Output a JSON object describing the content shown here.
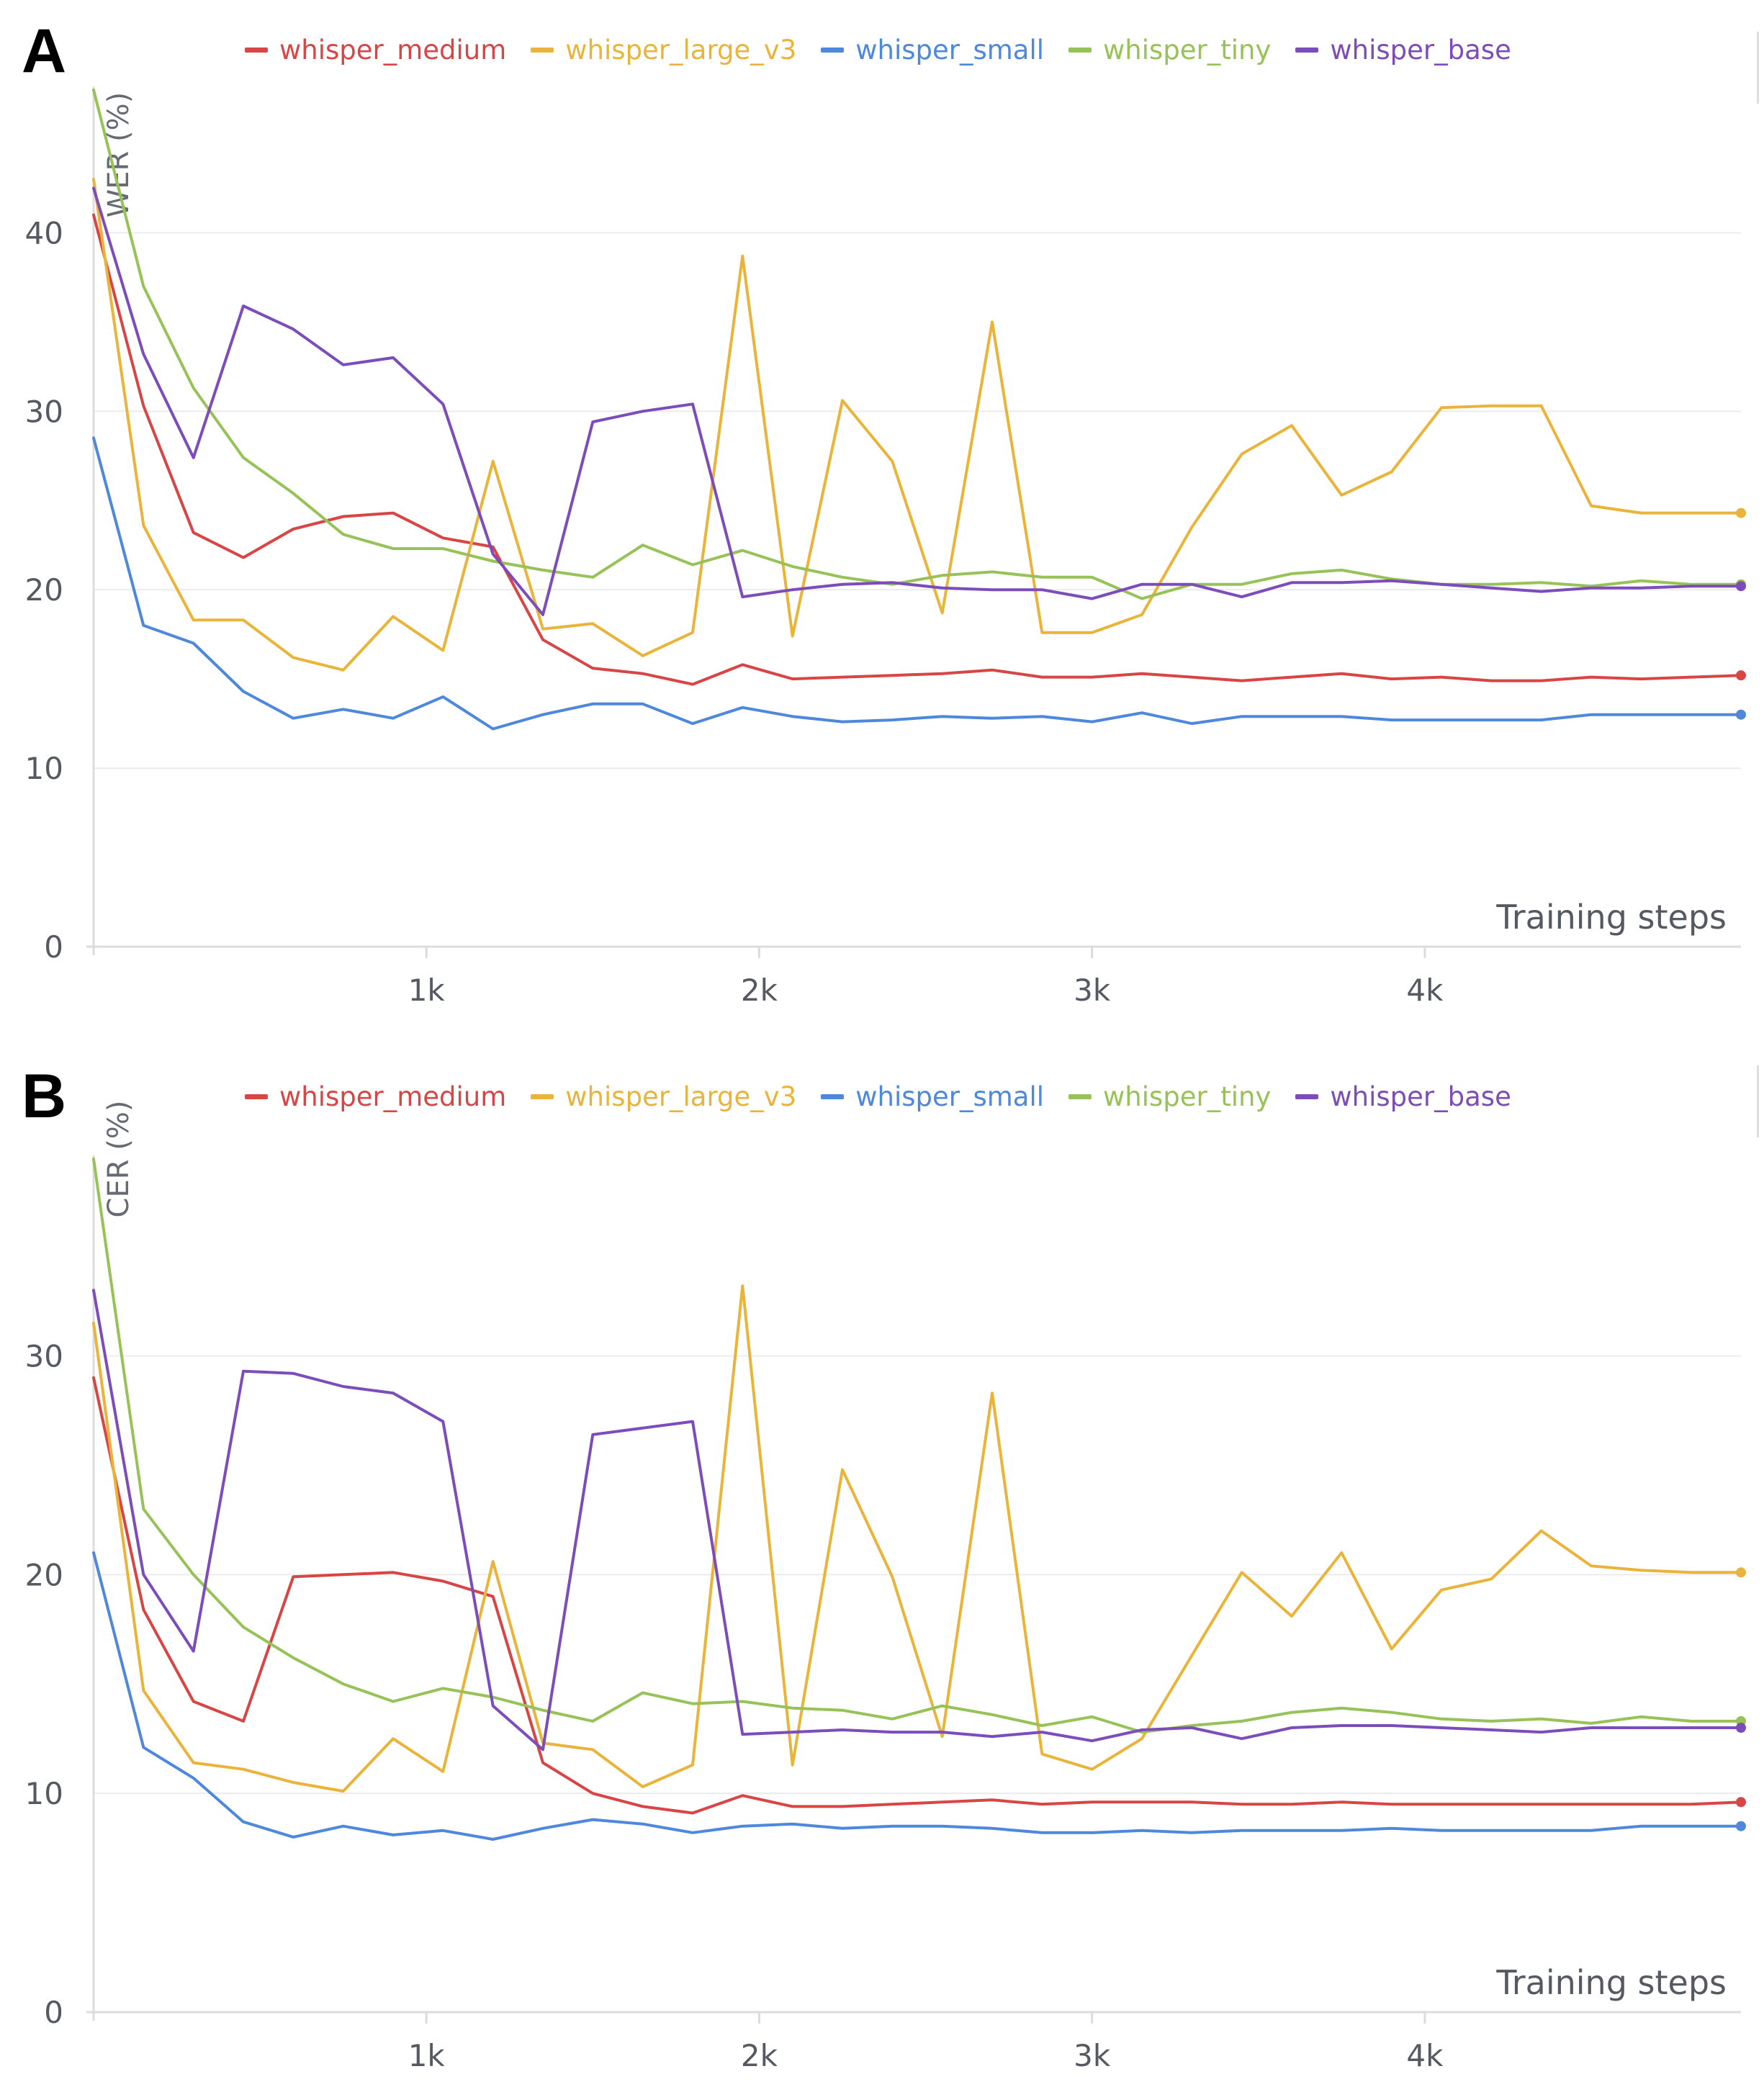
{
  "panels": [
    {
      "letter": "A",
      "legend": [
        {
          "name": "whisper_medium",
          "color": "#d94545"
        },
        {
          "name": "whisper_large_v3",
          "color": "#eab43b"
        },
        {
          "name": "whisper_small",
          "color": "#4d88dc"
        },
        {
          "name": "whisper_tiny",
          "color": "#96c257"
        },
        {
          "name": "whisper_base",
          "color": "#7c4dba"
        }
      ]
    },
    {
      "letter": "B",
      "legend": [
        {
          "name": "whisper_medium",
          "color": "#d94545"
        },
        {
          "name": "whisper_large_v3",
          "color": "#eab43b"
        },
        {
          "name": "whisper_small",
          "color": "#4d88dc"
        },
        {
          "name": "whisper_tiny",
          "color": "#96c257"
        },
        {
          "name": "whisper_base",
          "color": "#7c4dba"
        }
      ]
    }
  ],
  "chart_data": [
    {
      "type": "line",
      "ylabel": "WER (%)",
      "xlabel": "Training steps",
      "xlim": [
        0,
        4950
      ],
      "ylim": [
        0,
        48
      ],
      "x_ticks": [
        1000,
        2000,
        3000,
        4000
      ],
      "x_tick_labels": [
        "1k",
        "2k",
        "3k",
        "4k"
      ],
      "y_ticks": [
        0,
        10,
        20,
        30,
        40
      ],
      "y_tick_labels": [
        "0",
        "10",
        "20",
        "30",
        "40"
      ],
      "grid": true,
      "legend_position": "top",
      "x": [
        0,
        150,
        300,
        450,
        600,
        750,
        900,
        1050,
        1200,
        1350,
        1500,
        1650,
        1800,
        1950,
        2100,
        2250,
        2400,
        2550,
        2700,
        2850,
        3000,
        3150,
        3300,
        3450,
        3600,
        3750,
        3900,
        4050,
        4200,
        4350,
        4500,
        4650,
        4800,
        4950
      ],
      "series": [
        {
          "name": "whisper_medium",
          "color": "#d94545",
          "values": [
            41.0,
            30.3,
            23.2,
            21.8,
            23.4,
            24.1,
            24.3,
            22.9,
            22.4,
            17.2,
            15.6,
            15.3,
            14.7,
            15.8,
            15.0,
            15.1,
            15.2,
            15.3,
            15.5,
            15.1,
            15.1,
            15.3,
            15.1,
            14.9,
            15.1,
            15.3,
            15.0,
            15.1,
            14.9,
            14.9,
            15.1,
            15.0,
            15.1,
            15.2
          ]
        },
        {
          "name": "whisper_large_v3",
          "color": "#eab43b",
          "values": [
            43.0,
            23.6,
            18.3,
            18.3,
            16.2,
            15.5,
            18.5,
            16.6,
            27.2,
            17.8,
            18.1,
            16.3,
            17.6,
            38.7,
            17.4,
            30.6,
            27.2,
            18.7,
            35.0,
            17.6,
            17.6,
            18.6,
            23.5,
            27.6,
            29.2,
            25.3,
            26.6,
            30.2,
            30.3,
            30.3,
            24.7,
            24.3,
            24.3,
            24.3
          ]
        },
        {
          "name": "whisper_small",
          "color": "#4d88dc",
          "values": [
            28.5,
            18.0,
            17.0,
            14.3,
            12.8,
            13.3,
            12.8,
            14.0,
            12.2,
            13.0,
            13.6,
            13.6,
            12.5,
            13.4,
            12.9,
            12.6,
            12.7,
            12.9,
            12.8,
            12.9,
            12.6,
            13.1,
            12.5,
            12.9,
            12.9,
            12.9,
            12.7,
            12.7,
            12.7,
            12.7,
            13.0,
            13.0,
            13.0,
            13.0
          ]
        },
        {
          "name": "whisper_tiny",
          "color": "#96c257",
          "values": [
            48.0,
            37.0,
            31.3,
            27.4,
            25.4,
            23.1,
            22.3,
            22.3,
            21.6,
            21.1,
            20.7,
            22.5,
            21.4,
            22.2,
            21.3,
            20.7,
            20.3,
            20.8,
            21.0,
            20.7,
            20.7,
            19.5,
            20.3,
            20.3,
            20.9,
            21.1,
            20.6,
            20.3,
            20.3,
            20.4,
            20.2,
            20.5,
            20.3,
            20.3
          ]
        },
        {
          "name": "whisper_base",
          "color": "#7c4dba",
          "values": [
            42.5,
            33.2,
            27.4,
            35.9,
            34.6,
            32.6,
            33.0,
            30.4,
            22.0,
            18.6,
            29.4,
            30.0,
            30.4,
            19.6,
            20.0,
            20.3,
            20.4,
            20.1,
            20.0,
            20.0,
            19.5,
            20.3,
            20.3,
            19.6,
            20.4,
            20.4,
            20.5,
            20.3,
            20.1,
            19.9,
            20.1,
            20.1,
            20.2,
            20.2
          ]
        }
      ]
    },
    {
      "type": "line",
      "ylabel": "CER (%)",
      "xlabel": "Training steps",
      "xlim": [
        0,
        4950
      ],
      "ylim": [
        0,
        39
      ],
      "x_ticks": [
        1000,
        2000,
        3000,
        4000
      ],
      "x_tick_labels": [
        "1k",
        "2k",
        "3k",
        "4k"
      ],
      "y_ticks": [
        0,
        10,
        20,
        30
      ],
      "y_tick_labels": [
        "0",
        "10",
        "20",
        "30"
      ],
      "grid": true,
      "legend_position": "top",
      "x": [
        0,
        150,
        300,
        450,
        600,
        750,
        900,
        1050,
        1200,
        1350,
        1500,
        1650,
        1800,
        1950,
        2100,
        2250,
        2400,
        2550,
        2700,
        2850,
        3000,
        3150,
        3300,
        3450,
        3600,
        3750,
        3900,
        4050,
        4200,
        4350,
        4500,
        4650,
        4800,
        4950
      ],
      "series": [
        {
          "name": "whisper_medium",
          "color": "#d94545",
          "values": [
            29.0,
            18.4,
            14.2,
            13.3,
            19.9,
            20.0,
            20.1,
            19.7,
            19.0,
            11.4,
            10.0,
            9.4,
            9.1,
            9.9,
            9.4,
            9.4,
            9.5,
            9.6,
            9.7,
            9.5,
            9.6,
            9.6,
            9.6,
            9.5,
            9.5,
            9.6,
            9.5,
            9.5,
            9.5,
            9.5,
            9.5,
            9.5,
            9.5,
            9.6
          ]
        },
        {
          "name": "whisper_large_v3",
          "color": "#eab43b",
          "values": [
            31.5,
            14.7,
            11.4,
            11.1,
            10.5,
            10.1,
            12.5,
            11.0,
            20.6,
            12.3,
            12.0,
            10.3,
            11.3,
            33.2,
            11.3,
            24.8,
            19.9,
            12.6,
            28.3,
            11.8,
            11.1,
            12.5,
            16.3,
            20.1,
            18.1,
            21.0,
            16.6,
            19.3,
            19.8,
            22.0,
            20.4,
            20.2,
            20.1,
            20.1
          ]
        },
        {
          "name": "whisper_small",
          "color": "#4d88dc",
          "values": [
            21.0,
            12.1,
            10.7,
            8.7,
            8.0,
            8.5,
            8.1,
            8.3,
            7.9,
            8.4,
            8.8,
            8.6,
            8.2,
            8.5,
            8.6,
            8.4,
            8.5,
            8.5,
            8.4,
            8.2,
            8.2,
            8.3,
            8.2,
            8.3,
            8.3,
            8.3,
            8.4,
            8.3,
            8.3,
            8.3,
            8.3,
            8.5,
            8.5,
            8.5
          ]
        },
        {
          "name": "whisper_tiny",
          "color": "#96c257",
          "values": [
            39.0,
            23.0,
            20.0,
            17.6,
            16.2,
            15.0,
            14.2,
            14.8,
            14.4,
            13.8,
            13.3,
            14.6,
            14.1,
            14.2,
            13.9,
            13.8,
            13.4,
            14.0,
            13.6,
            13.1,
            13.5,
            12.8,
            13.1,
            13.3,
            13.7,
            13.9,
            13.7,
            13.4,
            13.3,
            13.4,
            13.2,
            13.5,
            13.3,
            13.3
          ]
        },
        {
          "name": "whisper_base",
          "color": "#7c4dba",
          "values": [
            33.0,
            20.0,
            16.5,
            29.3,
            29.2,
            28.6,
            28.3,
            27.0,
            14.0,
            12.0,
            26.4,
            26.7,
            27.0,
            12.7,
            12.8,
            12.9,
            12.8,
            12.8,
            12.6,
            12.8,
            12.4,
            12.9,
            13.0,
            12.5,
            13.0,
            13.1,
            13.1,
            13.0,
            12.9,
            12.8,
            13.0,
            13.0,
            13.0,
            13.0
          ]
        }
      ]
    }
  ]
}
